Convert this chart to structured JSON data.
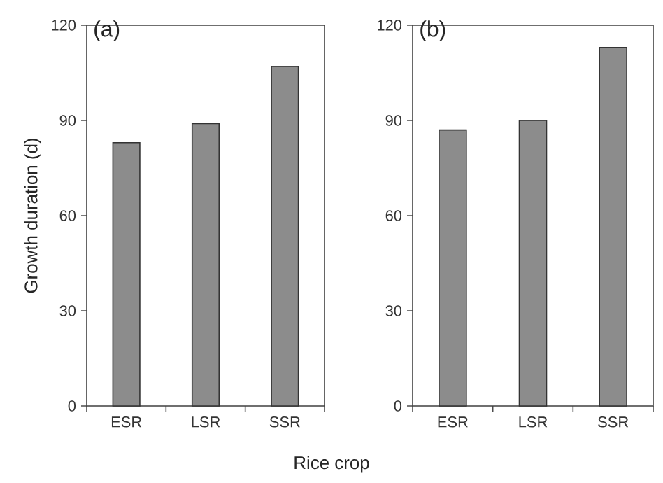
{
  "chart_data": [
    {
      "type": "bar",
      "title": "(a)",
      "ylabel": "Growth duration (d)",
      "xlabel": "Rice crop",
      "categories": [
        "ESR",
        "LSR",
        "SSR"
      ],
      "values": [
        83,
        89,
        107
      ],
      "color": "#8c8c8c",
      "ylim": [
        0,
        120
      ],
      "yticks": [
        0,
        30,
        60,
        90,
        120
      ]
    },
    {
      "type": "bar",
      "title": "(b)",
      "categories": [
        "ESR",
        "LSR",
        "SSR"
      ],
      "values": [
        87,
        90,
        113
      ],
      "color": "#8c8c8c",
      "ylim": [
        0,
        120
      ],
      "yticks": [
        0,
        30,
        60,
        90,
        120
      ]
    }
  ]
}
